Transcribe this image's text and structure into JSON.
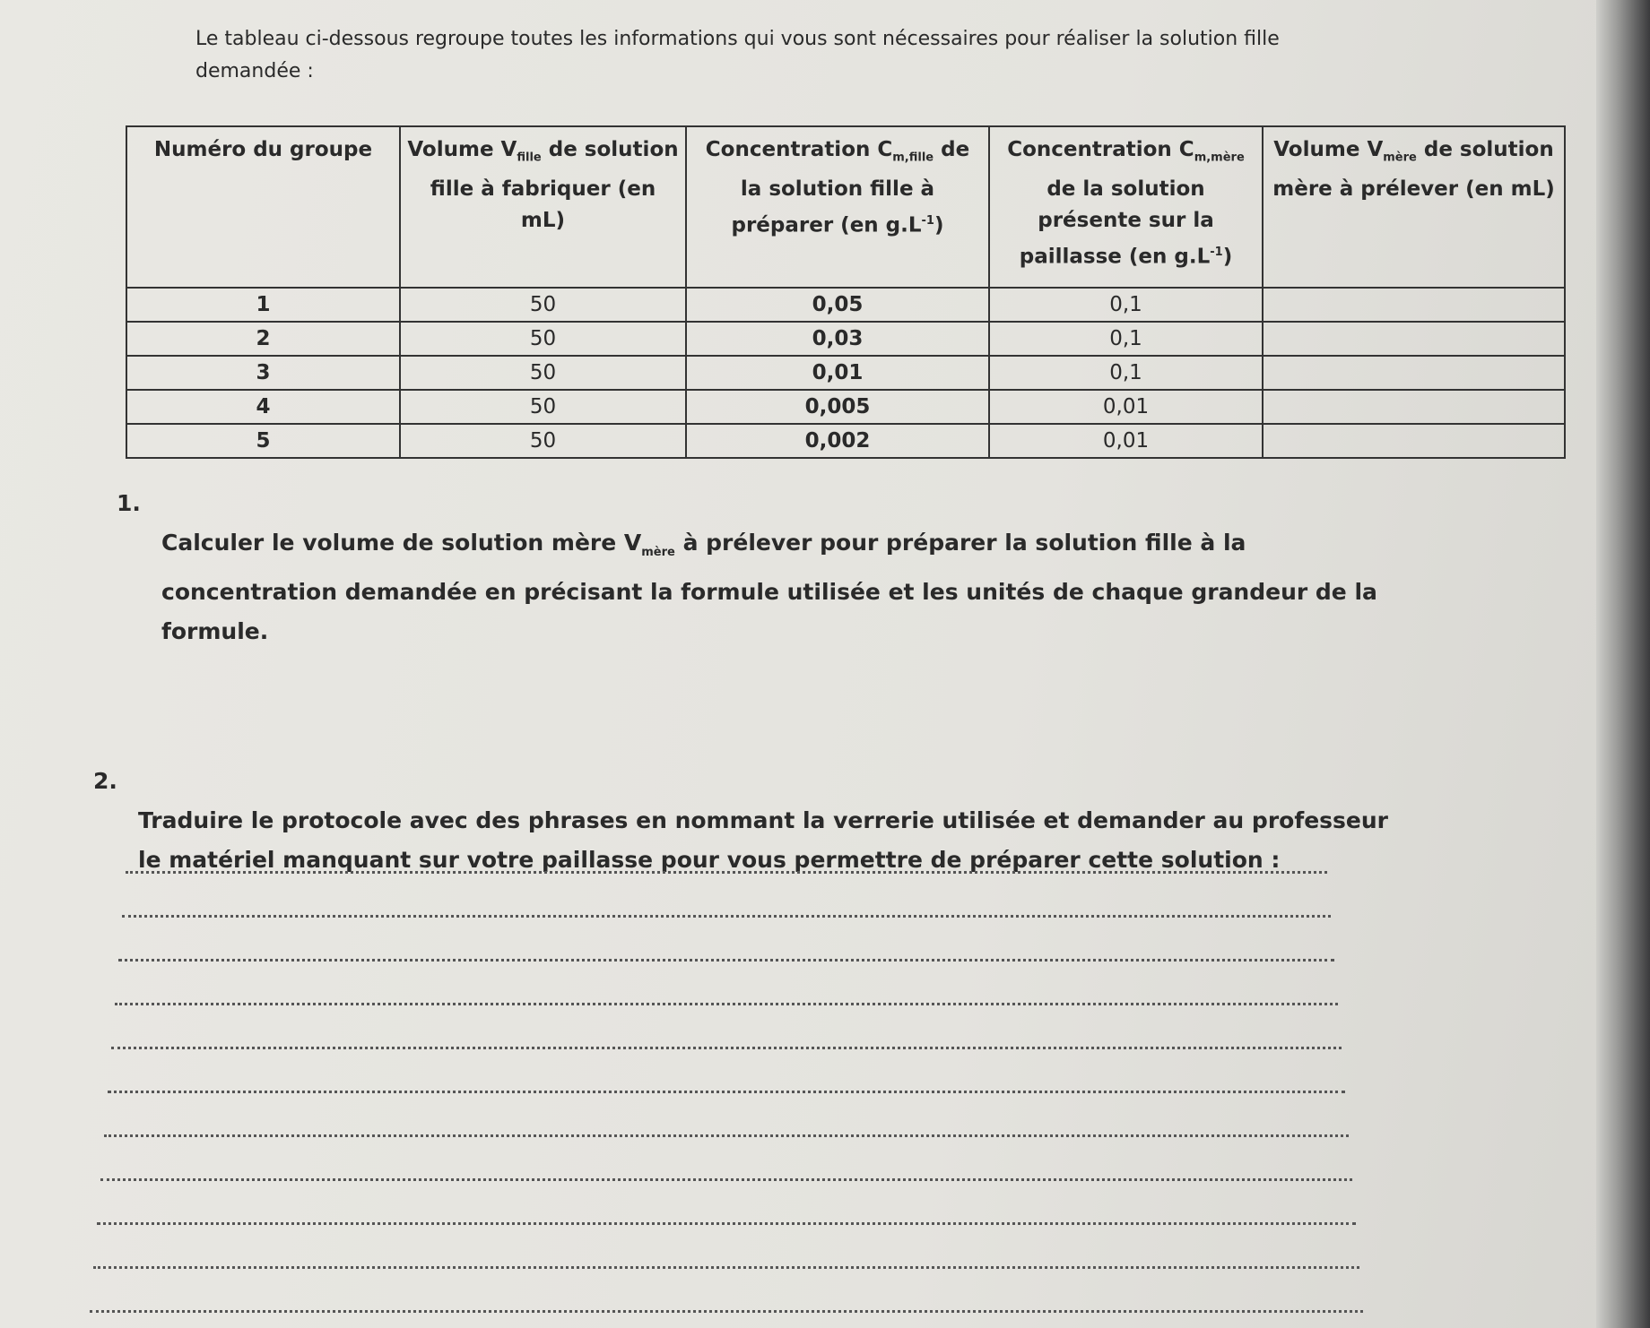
{
  "intro": "Le tableau ci-dessous regroupe toutes les informations qui vous sont nécessaires pour réaliser la solution fille demandée :",
  "table": {
    "header": [
      [
        {
          "t": "Numéro du groupe"
        }
      ],
      [
        {
          "t": "Volume V"
        },
        {
          "sub": "fille"
        },
        {
          "t": " de solution fille à fabriquer (en mL)"
        }
      ],
      [
        {
          "t": "Concentration C"
        },
        {
          "sub": "m,fille"
        },
        {
          "t": " de la solution fille à préparer (en g.L"
        },
        {
          "sup": "-1"
        },
        {
          "t": ")"
        }
      ],
      [
        {
          "t": "Concentration C"
        },
        {
          "sub": "m,mère"
        },
        {
          "t": " de la solution présente sur la paillasse (en g.L"
        },
        {
          "sup": "-1"
        },
        {
          "t": ")"
        }
      ],
      [
        {
          "t": "Volume V"
        },
        {
          "sub": "mère"
        },
        {
          "t": " de solution mère à prélever (en mL)"
        }
      ]
    ],
    "rows": [
      [
        "1",
        "50",
        "0,05",
        "0,1"
      ],
      [
        "2",
        "50",
        "0,03",
        "0,1"
      ],
      [
        "3",
        "50",
        "0,01",
        "0,1"
      ],
      [
        "4",
        "50",
        "0,005",
        "0,01"
      ],
      [
        "5",
        "50",
        "0,002",
        "0,01"
      ]
    ]
  },
  "questions": [
    {
      "number": "1.",
      "text": [
        {
          "t": "Calculer le volume de solution mère V"
        },
        {
          "sub": "mère"
        },
        {
          "t": " à prélever pour préparer la solution fille à la concentration demandée en précisant la formule utilisée et les unités de chaque grandeur de la formule."
        }
      ]
    },
    {
      "number": "2.",
      "text": [
        {
          "t": "Traduire le protocole avec des phrases en nommant la verrerie utilisée et demander au professeur le matériel manquant sur votre paillasse pour vous permettre de préparer cette solution :"
        }
      ]
    }
  ]
}
